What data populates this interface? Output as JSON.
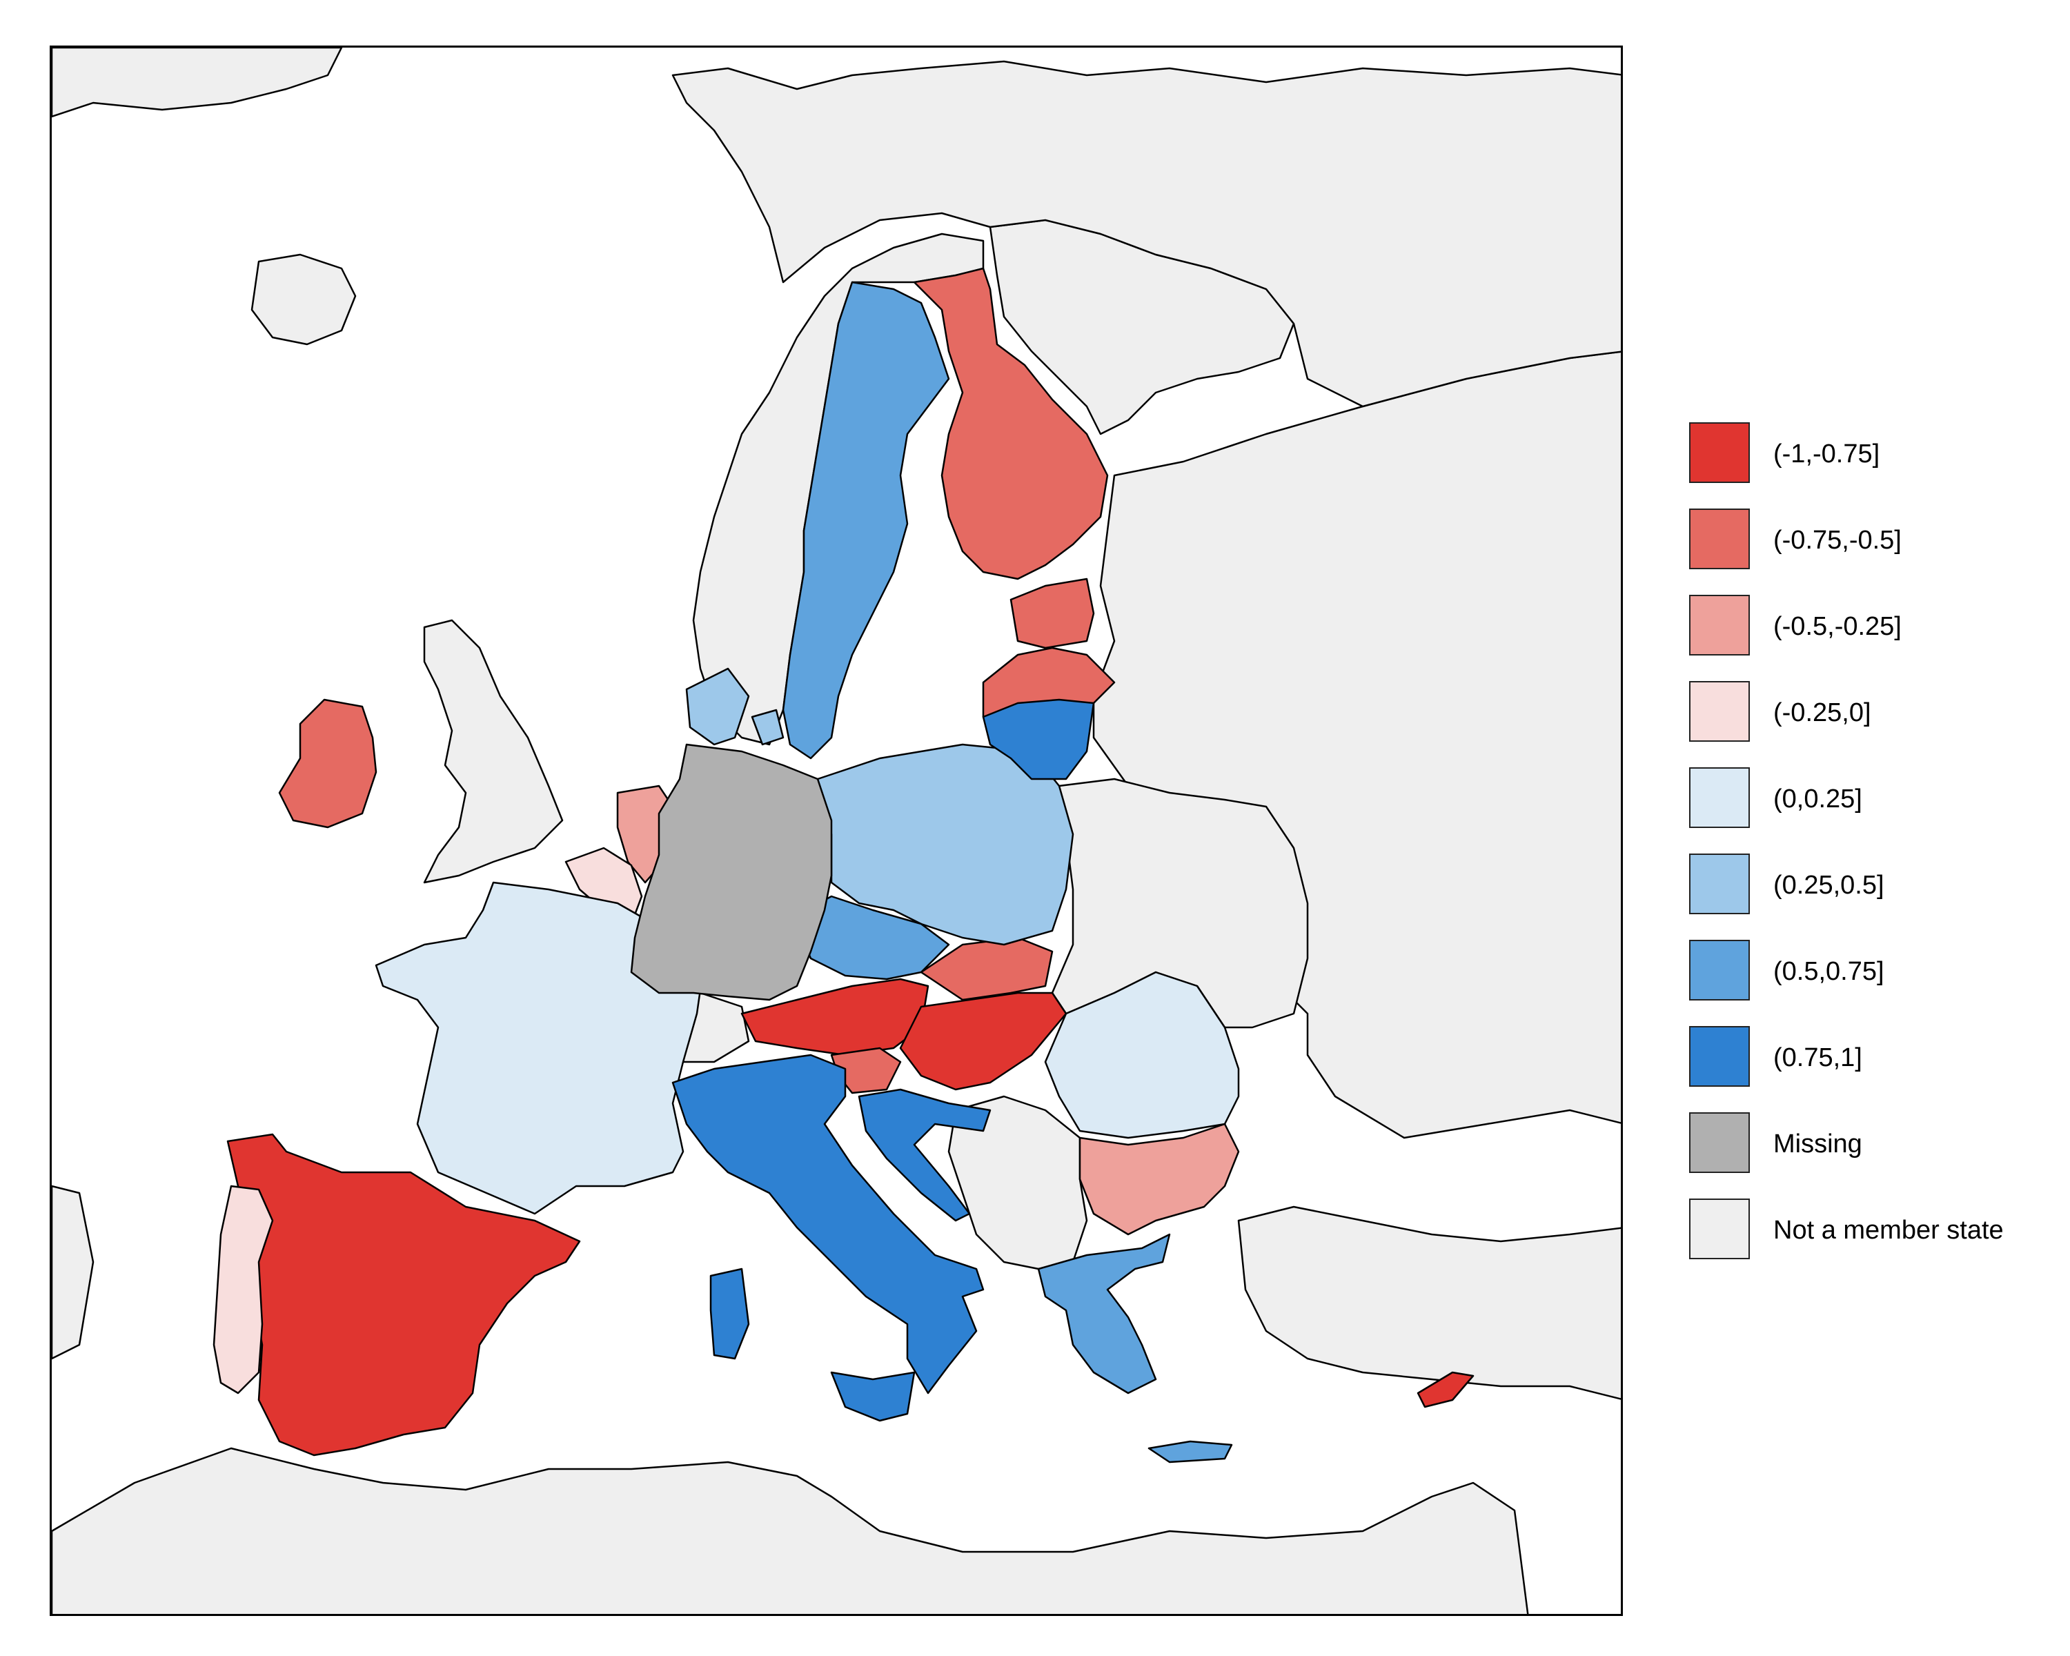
{
  "colors": {
    "background_sea": "#ffffff",
    "non_member_fill": "#efefef",
    "missing_fill": "#b0b0b0",
    "border": "#000000"
  },
  "legend": {
    "items": [
      {
        "label": "(-1,-0.75]",
        "color": "#e03530"
      },
      {
        "label": "(-0.75,-0.5]",
        "color": "#e56a62"
      },
      {
        "label": "(-0.5,-0.25]",
        "color": "#eea19b"
      },
      {
        "label": "(-0.25,0]",
        "color": "#f8dedd"
      },
      {
        "label": "(0,0.25]",
        "color": "#dbeaf5"
      },
      {
        "label": "(0.25,0.5]",
        "color": "#9dc8ea"
      },
      {
        "label": "(0.5,0.75]",
        "color": "#5fa3dd"
      },
      {
        "label": "(0.75,1]",
        "color": "#2e81d2"
      },
      {
        "label": "Missing",
        "color": "#b0b0b0"
      },
      {
        "label": "Not a member state",
        "color": "#efefef"
      }
    ]
  },
  "regions": [
    {
      "name": "Spain",
      "category": "(-1,-0.75]"
    },
    {
      "name": "Austria",
      "category": "(-1,-0.75]"
    },
    {
      "name": "Hungary",
      "category": "(-1,-0.75]"
    },
    {
      "name": "Cyprus",
      "category": "(-1,-0.75]"
    },
    {
      "name": "Finland",
      "category": "(-0.75,-0.5]"
    },
    {
      "name": "Ireland",
      "category": "(-0.75,-0.5]"
    },
    {
      "name": "Estonia",
      "category": "(-0.75,-0.5]"
    },
    {
      "name": "Latvia",
      "category": "(-0.75,-0.5]"
    },
    {
      "name": "Slovakia",
      "category": "(-0.75,-0.5]"
    },
    {
      "name": "Slovenia",
      "category": "(-0.75,-0.5]"
    },
    {
      "name": "Netherlands",
      "category": "(-0.5,-0.25]"
    },
    {
      "name": "Bulgaria",
      "category": "(-0.5,-0.25]"
    },
    {
      "name": "Portugal",
      "category": "(-0.25,0]"
    },
    {
      "name": "Belgium",
      "category": "(-0.25,0]"
    },
    {
      "name": "France",
      "category": "(0,0.25]"
    },
    {
      "name": "Romania",
      "category": "(0,0.25]"
    },
    {
      "name": "Denmark",
      "category": "(0.25,0.5]"
    },
    {
      "name": "Poland",
      "category": "(0.25,0.5]"
    },
    {
      "name": "Sweden",
      "category": "(0.5,0.75]"
    },
    {
      "name": "Czechia",
      "category": "(0.5,0.75]"
    },
    {
      "name": "Greece",
      "category": "(0.5,0.75]"
    },
    {
      "name": "Italy",
      "category": "(0.75,1]"
    },
    {
      "name": "Lithuania",
      "category": "(0.75,1]"
    },
    {
      "name": "Croatia",
      "category": "(0.75,1]"
    },
    {
      "name": "Germany",
      "category": "Missing"
    }
  ]
}
